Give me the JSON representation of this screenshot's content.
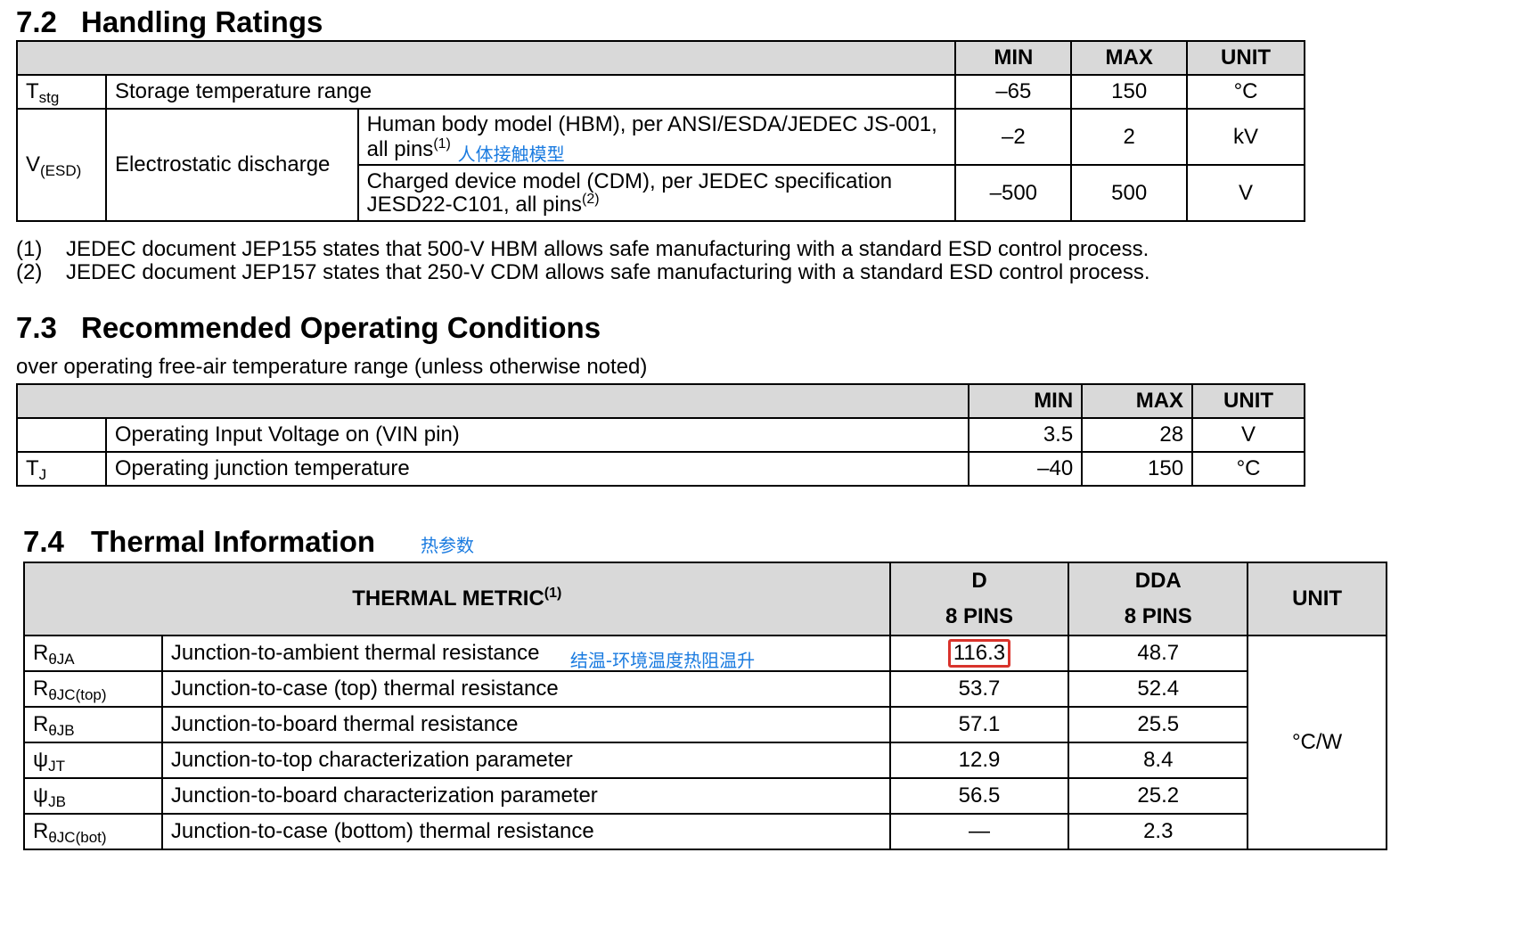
{
  "s72": {
    "num": "7.2",
    "title": "Handling Ratings",
    "headers": {
      "min": "MIN",
      "max": "MAX",
      "unit": "UNIT"
    },
    "tstg": {
      "sym": "T",
      "sub": "stg",
      "desc": "Storage temperature range",
      "min": "–65",
      "max": "150",
      "unit": "°C"
    },
    "vesd": {
      "sym": "V",
      "sub": "(ESD)",
      "desc": "Electrostatic discharge",
      "hbm": {
        "cond": "Human body model (HBM), per ANSI/ESDA/JEDEC JS-001, all pins",
        "fn": "(1)",
        "min": "–2",
        "max": "2",
        "unit": "kV",
        "note": "人体接触模型"
      },
      "cdm": {
        "cond": "Charged device model (CDM), per JEDEC specification JESD22-C101, all pins",
        "fn": "(2)",
        "min": "–500",
        "max": "500",
        "unit": "V"
      }
    },
    "notes": [
      {
        "n": "(1)",
        "text": "JEDEC document JEP155 states that 500-V HBM allows safe manufacturing with a standard ESD control process."
      },
      {
        "n": "(2)",
        "text": "JEDEC document JEP157 states that 250-V CDM allows safe manufacturing with a standard ESD control process."
      }
    ]
  },
  "s73": {
    "num": "7.3",
    "title": "Recommended Operating Conditions",
    "subtitle": "over operating free-air temperature range (unless otherwise noted)",
    "headers": {
      "min": "MIN",
      "max": "MAX",
      "unit": "UNIT"
    },
    "vin": {
      "sym": "",
      "desc": "Operating Input Voltage on (VIN pin)",
      "min": "3.5",
      "max": "28",
      "unit": "V"
    },
    "tj": {
      "sym": "T",
      "sub": "J",
      "desc": "Operating junction temperature",
      "min": "–40",
      "max": "150",
      "unit": "°C"
    }
  },
  "s74": {
    "num": "7.4",
    "title": "Thermal Information",
    "title_note": "热参数",
    "headers": {
      "metric": "THERMAL METRIC",
      "metric_fn": "(1)",
      "d": "D",
      "d_pins": "8 PINS",
      "dda": "DDA",
      "dda_pins": "8 PINS",
      "unit": "UNIT"
    },
    "unit": "°C/W",
    "rows": [
      {
        "sym": "R",
        "sub": "θJA",
        "desc": "Junction-to-ambient thermal resistance",
        "note": "结温-环境温度热阻温升",
        "d": "116.3",
        "dda": "48.7"
      },
      {
        "sym": "R",
        "sub": "θJC(top)",
        "desc": "Junction-to-case (top) thermal resistance",
        "d": "53.7",
        "dda": "52.4"
      },
      {
        "sym": "R",
        "sub": "θJB",
        "desc": "Junction-to-board thermal resistance",
        "d": "57.1",
        "dda": "25.5"
      },
      {
        "sym": "ψ",
        "sub": "JT",
        "desc": "Junction-to-top characterization parameter",
        "d": "12.9",
        "dda": "8.4"
      },
      {
        "sym": "ψ",
        "sub": "JB",
        "desc": "Junction-to-board characterization parameter",
        "d": "56.5",
        "dda": "25.2"
      },
      {
        "sym": "R",
        "sub": "θJC(bot)",
        "desc": "Junction-to-case (bottom) thermal resistance",
        "d": "—",
        "dda": "2.3"
      }
    ]
  }
}
